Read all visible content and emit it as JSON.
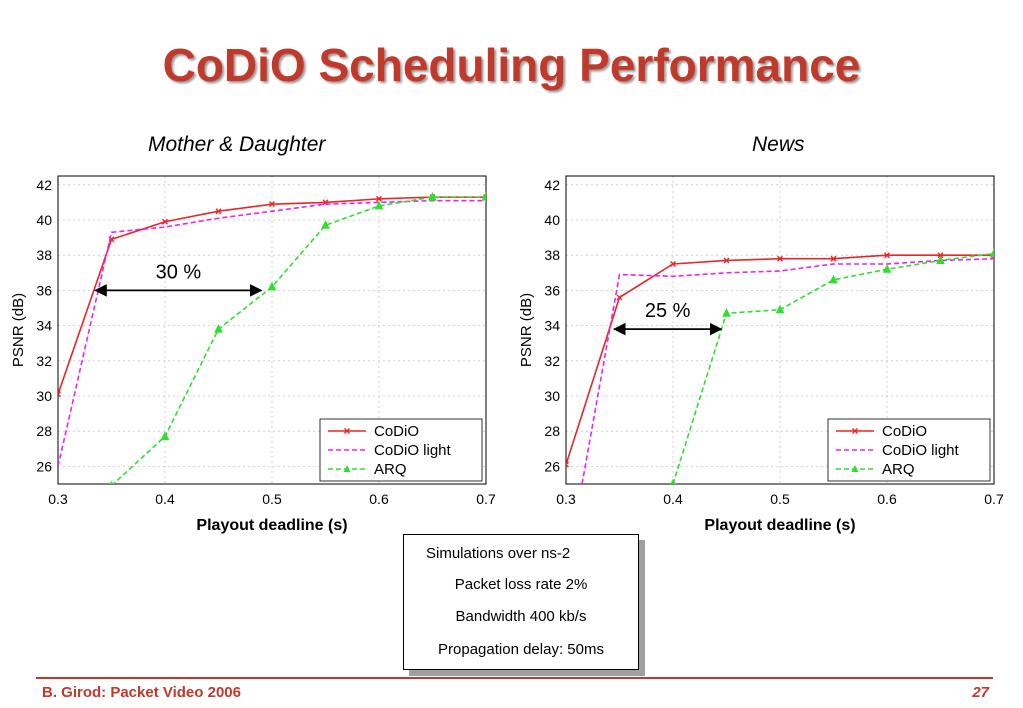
{
  "slide": {
    "title": "CoDiO Scheduling Performance",
    "footer_left": "B. Girod: Packet Video 2006",
    "page_number": "27"
  },
  "info_box": {
    "lines": [
      "Simulations over ns-2",
      "Packet loss rate 2%",
      "Bandwidth 400 kb/s",
      "Propagation delay: 50ms"
    ]
  },
  "colors": {
    "codio": "#e8262a",
    "codio_light": "#ee22ee",
    "arq": "#2ee02e",
    "title": "#c0392b"
  },
  "chart_data": [
    {
      "type": "line",
      "title": "Mother & Daughter",
      "xlabel": "Playout deadline (s)",
      "ylabel": "PSNR (dB)",
      "xlim": [
        0.3,
        0.7
      ],
      "ylim": [
        25,
        42.5
      ],
      "xticks": [
        "0.3",
        "0.4",
        "0.5",
        "0.6",
        "0.7"
      ],
      "yticks": [
        "26",
        "28",
        "30",
        "32",
        "34",
        "36",
        "38",
        "40",
        "42"
      ],
      "grid": true,
      "legend_position": "bottom-right",
      "annotation": {
        "text": "30 %",
        "y": 36.0,
        "x_start": 0.335,
        "x_end": 0.49
      },
      "series": [
        {
          "name": "CoDiO",
          "style": "solid",
          "marker": "x",
          "x": [
            0.3,
            0.35,
            0.4,
            0.45,
            0.5,
            0.55,
            0.6,
            0.65,
            0.7
          ],
          "y": [
            30.1,
            38.9,
            39.9,
            40.5,
            40.9,
            41.0,
            41.2,
            41.3,
            41.3
          ]
        },
        {
          "name": "CoDiO light",
          "style": "dashed",
          "marker": "none",
          "x": [
            0.3,
            0.35,
            0.4,
            0.45,
            0.5,
            0.55,
            0.6,
            0.65,
            0.7
          ],
          "y": [
            26.0,
            39.3,
            39.6,
            40.1,
            40.5,
            40.9,
            41.0,
            41.1,
            41.1
          ]
        },
        {
          "name": "ARQ",
          "style": "dashed",
          "marker": "triangle",
          "x": [
            0.35,
            0.4,
            0.45,
            0.5,
            0.55,
            0.6,
            0.65,
            0.7
          ],
          "y": [
            24.9,
            27.7,
            33.8,
            36.2,
            39.7,
            40.8,
            41.3,
            41.3
          ]
        }
      ]
    },
    {
      "type": "line",
      "title": "News",
      "xlabel": "Playout deadline (s)",
      "ylabel": "PSNR (dB)",
      "xlim": [
        0.3,
        0.7
      ],
      "ylim": [
        25,
        42.5
      ],
      "xticks": [
        "0.3",
        "0.4",
        "0.5",
        "0.6",
        "0.7"
      ],
      "yticks": [
        "26",
        "28",
        "30",
        "32",
        "34",
        "36",
        "38",
        "40",
        "42"
      ],
      "grid": true,
      "legend_position": "bottom-right",
      "annotation": {
        "text": "25 %",
        "y": 33.8,
        "x_start": 0.345,
        "x_end": 0.445
      },
      "series": [
        {
          "name": "CoDiO",
          "style": "solid",
          "marker": "x",
          "x": [
            0.3,
            0.35,
            0.4,
            0.45,
            0.5,
            0.55,
            0.6,
            0.65,
            0.7
          ],
          "y": [
            26.1,
            35.6,
            37.5,
            37.7,
            37.8,
            37.8,
            38.0,
            38.0,
            38.0
          ]
        },
        {
          "name": "CoDiO light",
          "style": "dashed",
          "marker": "none",
          "x": [
            0.315,
            0.35,
            0.4,
            0.45,
            0.5,
            0.55,
            0.6,
            0.65,
            0.7
          ],
          "y": [
            25.0,
            36.9,
            36.8,
            37.0,
            37.1,
            37.5,
            37.5,
            37.7,
            37.8
          ]
        },
        {
          "name": "ARQ",
          "style": "dashed",
          "marker": "triangle",
          "x": [
            0.4,
            0.45,
            0.5,
            0.55,
            0.6,
            0.65,
            0.7
          ],
          "y": [
            25.0,
            34.7,
            34.9,
            36.6,
            37.2,
            37.7,
            38.1
          ]
        }
      ]
    }
  ]
}
